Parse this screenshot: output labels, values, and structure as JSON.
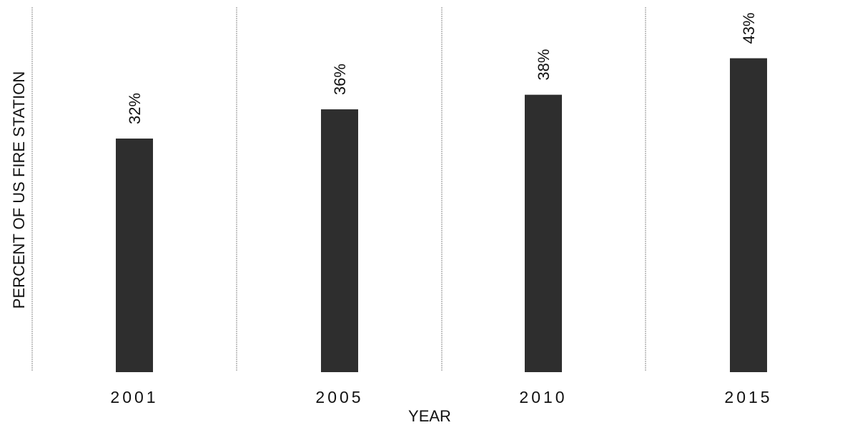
{
  "chart_data": {
    "type": "bar",
    "title": "",
    "xlabel": "YEAR",
    "ylabel": "PERCENT OF US FIRE STATION",
    "categories": [
      "2001",
      "2005",
      "2010",
      "2015"
    ],
    "values": [
      32,
      36,
      38,
      43
    ],
    "value_labels": [
      "32%",
      "36%",
      "38%",
      "43%"
    ],
    "ylim": [
      0,
      50
    ],
    "grid": false,
    "legend": "none",
    "bar_color": "#2e2e2e"
  }
}
